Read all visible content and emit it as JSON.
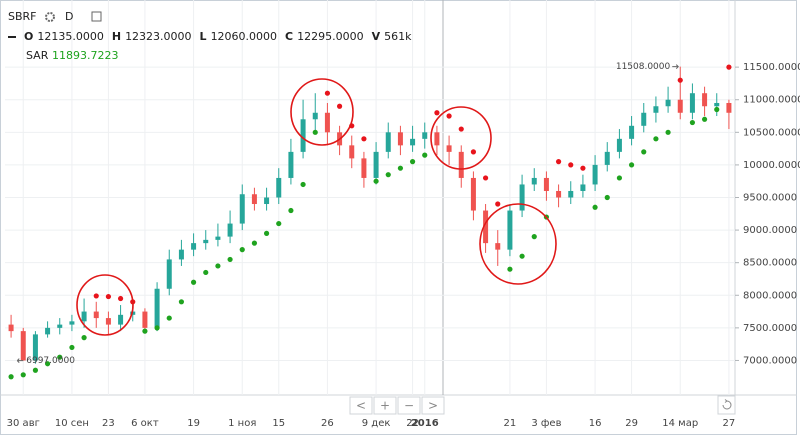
{
  "header": {
    "symbol": "SBRF",
    "interval": "D",
    "ohlc_legend": [
      {
        "key": "O",
        "value": "12135.0000"
      },
      {
        "key": "H",
        "value": "12323.0000"
      },
      {
        "key": "L",
        "value": "12060.0000"
      },
      {
        "key": "C",
        "value": "12295.0000"
      },
      {
        "key": "V",
        "value": "561k"
      }
    ]
  },
  "nav_buttons": [
    "<",
    "+",
    "−",
    ">"
  ],
  "chart_data": {
    "type": "candlestick",
    "categories": [
      null,
      "30 авг",
      null,
      null,
      null,
      "10 сен",
      null,
      null,
      "23",
      null,
      null,
      "6 окт",
      null,
      null,
      null,
      "19",
      null,
      null,
      null,
      "1 ноя",
      null,
      null,
      "15",
      null,
      null,
      null,
      "26",
      null,
      null,
      null,
      "9 дек",
      null,
      null,
      "22",
      "2016",
      null,
      null,
      null,
      null,
      null,
      null,
      "21",
      null,
      null,
      "3 фев",
      null,
      null,
      null,
      "16",
      null,
      null,
      "29",
      null,
      null,
      null,
      "14 мар",
      null,
      null,
      null,
      "27"
    ],
    "open": [
      7550,
      7450,
      7000,
      7400,
      7500,
      7550,
      7600,
      7750,
      7650,
      7550,
      7700,
      7750,
      7500,
      8100,
      8550,
      8700,
      8800,
      8850,
      8900,
      9100,
      9550,
      9400,
      9500,
      9800,
      10200,
      10700,
      10800,
      10500,
      10300,
      10100,
      9800,
      10200,
      10500,
      10300,
      10400,
      10500,
      10300,
      10200,
      9800,
      9300,
      8800,
      8700,
      9300,
      9700,
      9800,
      9600,
      9500,
      9600,
      9700,
      10000,
      10200,
      10400,
      10600,
      10800,
      10900,
      11000,
      10800,
      11100,
      10900,
      10950
    ],
    "high": [
      7700,
      7500,
      7450,
      7600,
      7650,
      7700,
      7950,
      7900,
      7750,
      7850,
      7900,
      7800,
      8200,
      8700,
      8850,
      8950,
      9000,
      9100,
      9300,
      9700,
      9650,
      9650,
      9950,
      10400,
      11000,
      11100,
      10950,
      10600,
      10450,
      10200,
      10350,
      10650,
      10600,
      10600,
      10650,
      10600,
      10450,
      10300,
      9900,
      9400,
      9000,
      9400,
      9850,
      9950,
      9900,
      9700,
      9750,
      9850,
      10150,
      10350,
      10550,
      10750,
      10950,
      11050,
      11200,
      11508,
      11250,
      11200,
      11100,
      11000
    ],
    "low": [
      7350,
      6997,
      6950,
      7350,
      7400,
      7450,
      7500,
      7500,
      7400,
      7450,
      7600,
      7450,
      7450,
      8000,
      8450,
      8600,
      8700,
      8750,
      8800,
      9000,
      9300,
      9300,
      9400,
      9700,
      10100,
      10500,
      10300,
      10150,
      9950,
      9650,
      9700,
      10100,
      10150,
      10200,
      10250,
      10150,
      10000,
      9650,
      9150,
      8650,
      8450,
      8600,
      9200,
      9600,
      9450,
      9350,
      9400,
      9500,
      9600,
      9900,
      10100,
      10300,
      10500,
      10650,
      10800,
      10700,
      10700,
      10750,
      10750,
      10550
    ],
    "close": [
      7450,
      7000,
      7400,
      7500,
      7550,
      7600,
      7750,
      7650,
      7550,
      7700,
      7750,
      7500,
      8100,
      8550,
      8700,
      8800,
      8850,
      8900,
      9100,
      9550,
      9400,
      9500,
      9800,
      10200,
      10700,
      10800,
      10500,
      10300,
      10100,
      9800,
      10200,
      10500,
      10300,
      10400,
      10500,
      10300,
      10200,
      9800,
      9300,
      8800,
      8700,
      9300,
      9700,
      9800,
      9600,
      9500,
      9600,
      9700,
      10000,
      10200,
      10400,
      10600,
      10800,
      10900,
      11000,
      10800,
      11100,
      10900,
      10950,
      10800
    ],
    "up_color": "#26a69a",
    "down_color": "#ef5350",
    "sar": {
      "name": "SAR",
      "value_label": "11893.7223",
      "up_color": "#1fa31f",
      "down_color": "#e8141c",
      "values": [
        6750,
        6780,
        6850,
        6950,
        7050,
        7200,
        7350,
        7990,
        7980,
        7950,
        7900,
        7450,
        7500,
        7650,
        7900,
        8200,
        8350,
        8450,
        8550,
        8700,
        8800,
        8950,
        9100,
        9300,
        9700,
        10500,
        11100,
        10900,
        10600,
        10400,
        9750,
        9850,
        9950,
        10050,
        10150,
        10800,
        10750,
        10550,
        10200,
        9800,
        9400,
        8400,
        8600,
        8900,
        9200,
        10050,
        10000,
        9950,
        9350,
        9500,
        9800,
        10000,
        10200,
        10400,
        10500,
        11300,
        10650,
        10700,
        10850,
        11500
      ]
    },
    "annotations": [
      {
        "text": "11508.0000",
        "value": 11508
      },
      {
        "text": "6997.0000",
        "value": 6997
      }
    ],
    "ylim": [
      6470,
      12530
    ],
    "yticks": [
      {
        "value": 7000,
        "label": "7000.0000"
      },
      {
        "value": 7500,
        "label": "7500.0000"
      },
      {
        "value": 8000,
        "label": "8000.0000"
      },
      {
        "value": 8500,
        "label": "8500.0000"
      },
      {
        "value": 9000,
        "label": "9000.0000"
      },
      {
        "value": 9500,
        "label": "9500.0000"
      },
      {
        "value": 10000,
        "label": "10000.0000"
      },
      {
        "value": 10500,
        "label": "10500.0000"
      },
      {
        "value": 11000,
        "label": "11000.0000"
      },
      {
        "value": 11500,
        "label": "11500.0000"
      }
    ],
    "grid": true
  }
}
